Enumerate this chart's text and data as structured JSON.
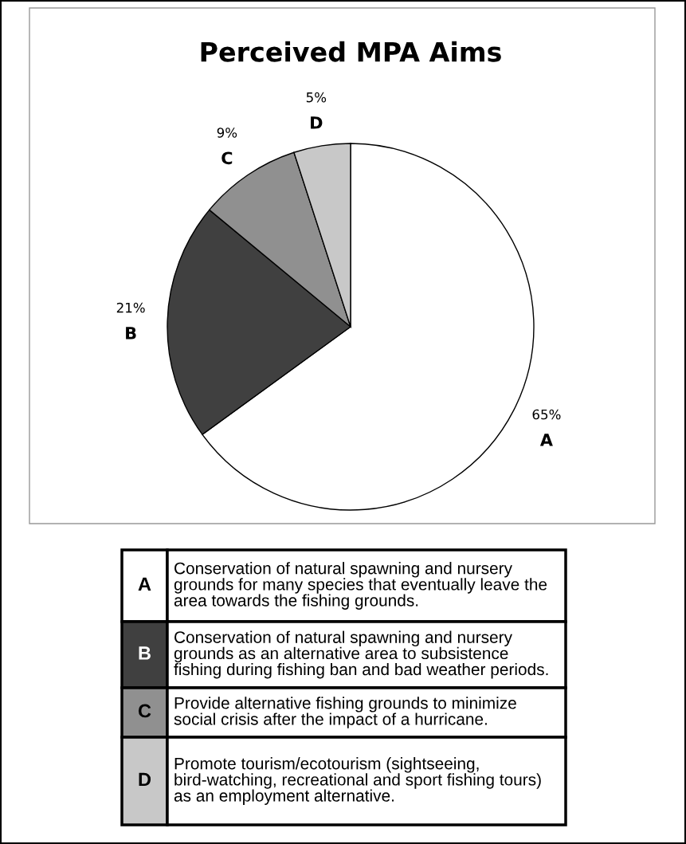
{
  "chart_data": {
    "type": "pie",
    "title": "Perceived MPA Aims",
    "categories": [
      "A",
      "B",
      "C",
      "D"
    ],
    "values": [
      65,
      21,
      9,
      5
    ],
    "colors": [
      "#ffffff",
      "#404040",
      "#909090",
      "#c8c8c8"
    ],
    "value_labels": [
      "65%",
      "21%",
      "9%",
      "5%"
    ],
    "annotations": [
      "Conservation of natural spawning and nursery grounds for many species that eventually leave the area towards the fishing grounds.",
      "Conservation of natural spawning and nursery grounds as an alternative area to subsistence fishing during fishing ban and bad weather periods.",
      "Provide alternative fishing grounds to minimize social crisis after the impact of a hurricane.",
      "Promote tourism/ecotourism (sightseeing, bird-watching, recreational and sport fishing tours) as an employment alternative."
    ]
  }
}
